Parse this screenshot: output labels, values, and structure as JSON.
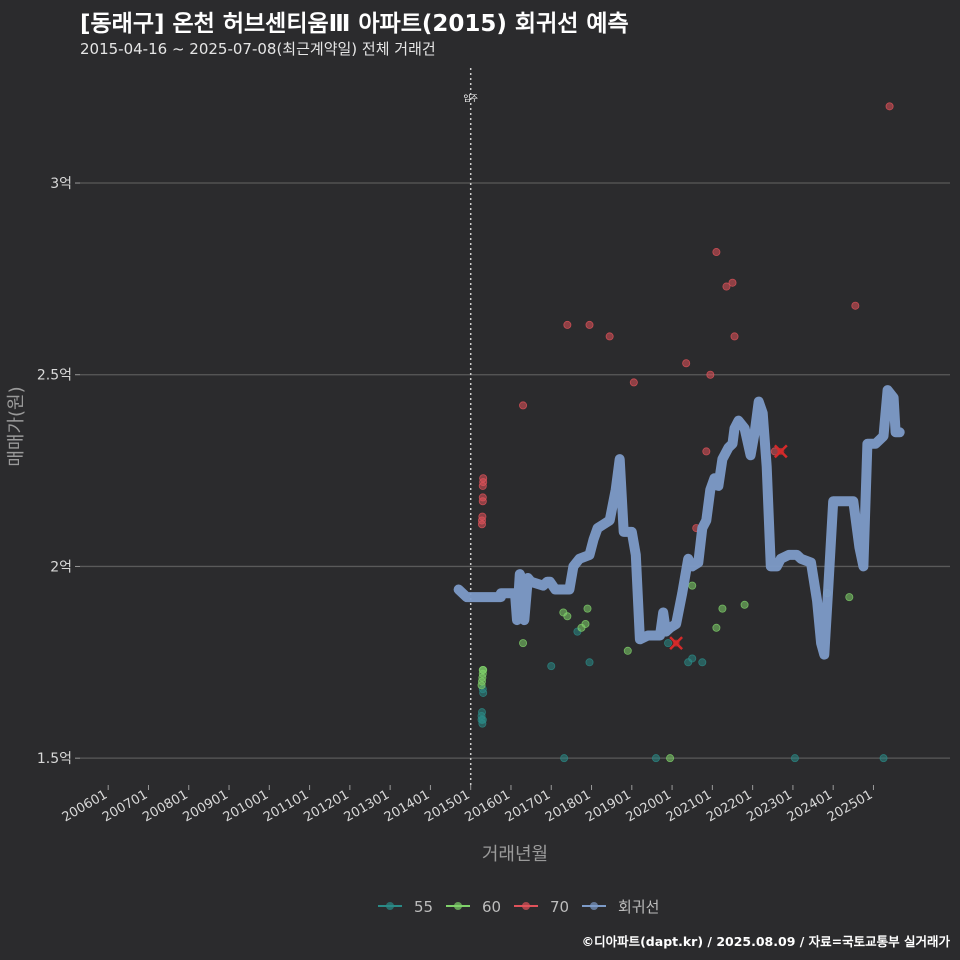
{
  "header": {
    "title": "[동래구] 온천 허브센티움Ⅲ 아파트(2015) 회귀선 예측",
    "subtitle": "2015-04-16 ~ 2025-07-08(최근계약일) 전체 거래건"
  },
  "footer": {
    "credit": "©디아파트(dapt.kr) / 2025.08.09 / 자료=국토교통부 실거래가"
  },
  "colors": {
    "background": "#2b2b2d",
    "grid": "#5a5a5a",
    "s55": "#2a8a86",
    "s60": "#7fd16a",
    "s70": "#e0525a",
    "regression": "#7d9bc8",
    "marker": "#d42a2a"
  },
  "chart_data": {
    "type": "scatter",
    "xlabel": "거래년월",
    "ylabel": "매매가(원)",
    "xlim": [
      2005.3,
      2026.9
    ],
    "ylim": [
      1.43,
      3.3
    ],
    "y_ticks": [
      {
        "v": 1.5,
        "label": "1.5억"
      },
      {
        "v": 2.0,
        "label": "2억"
      },
      {
        "v": 2.5,
        "label": "2.5억"
      },
      {
        "v": 3.0,
        "label": "3억"
      }
    ],
    "x_ticks": [
      {
        "v": 2006.0,
        "label": "200601"
      },
      {
        "v": 2007.0,
        "label": "200701"
      },
      {
        "v": 2008.0,
        "label": "200801"
      },
      {
        "v": 2009.0,
        "label": "200901"
      },
      {
        "v": 2010.0,
        "label": "201001"
      },
      {
        "v": 2011.0,
        "label": "201101"
      },
      {
        "v": 2012.0,
        "label": "201201"
      },
      {
        "v": 2013.0,
        "label": "201301"
      },
      {
        "v": 2014.0,
        "label": "201401"
      },
      {
        "v": 2015.0,
        "label": "201501"
      },
      {
        "v": 2016.0,
        "label": "201601"
      },
      {
        "v": 2017.0,
        "label": "201701"
      },
      {
        "v": 2018.0,
        "label": "201801"
      },
      {
        "v": 2019.0,
        "label": "201901"
      },
      {
        "v": 2020.0,
        "label": "202001"
      },
      {
        "v": 2021.0,
        "label": "202101"
      },
      {
        "v": 2022.0,
        "label": "202201"
      },
      {
        "v": 2023.0,
        "label": "202301"
      },
      {
        "v": 2024.0,
        "label": "202401"
      },
      {
        "v": 2025.0,
        "label": "202501"
      }
    ],
    "vline": {
      "x": 2015.0,
      "label": "입주"
    },
    "legend": [
      "55",
      "60",
      "70",
      "회귀선"
    ],
    "series": [
      {
        "name": "55",
        "color_key": "s55",
        "points": [
          [
            2015.27,
            1.6
          ],
          [
            2015.27,
            1.61
          ],
          [
            2015.28,
            1.62
          ],
          [
            2015.29,
            1.59
          ],
          [
            2015.3,
            1.6
          ],
          [
            2015.3,
            1.68
          ],
          [
            2015.31,
            1.67
          ],
          [
            2017.0,
            1.74
          ],
          [
            2017.32,
            1.5
          ],
          [
            2017.65,
            1.83
          ],
          [
            2017.95,
            1.75
          ],
          [
            2019.6,
            1.5
          ],
          [
            2019.9,
            1.8
          ],
          [
            2020.4,
            1.75
          ],
          [
            2020.5,
            1.76
          ],
          [
            2020.75,
            1.75
          ],
          [
            2023.05,
            1.5
          ],
          [
            2025.25,
            1.5
          ]
        ]
      },
      {
        "name": "60",
        "color_key": "s60",
        "points": [
          [
            2015.27,
            1.69
          ],
          [
            2015.28,
            1.7
          ],
          [
            2015.29,
            1.71
          ],
          [
            2015.3,
            1.72
          ],
          [
            2015.3,
            1.73
          ],
          [
            2015.31,
            1.73
          ],
          [
            2016.3,
            1.8
          ],
          [
            2017.3,
            1.88
          ],
          [
            2017.4,
            1.87
          ],
          [
            2017.75,
            1.84
          ],
          [
            2017.85,
            1.85
          ],
          [
            2017.9,
            1.89
          ],
          [
            2018.9,
            1.78
          ],
          [
            2019.95,
            1.5
          ],
          [
            2020.5,
            1.95
          ],
          [
            2021.1,
            1.84
          ],
          [
            2021.25,
            1.89
          ],
          [
            2021.8,
            1.9
          ],
          [
            2023.85,
            1.93
          ],
          [
            2024.4,
            1.92
          ]
        ]
      },
      {
        "name": "70",
        "color_key": "s70",
        "points": [
          [
            2015.28,
            2.11
          ],
          [
            2015.28,
            2.12
          ],
          [
            2015.29,
            2.13
          ],
          [
            2015.3,
            2.17
          ],
          [
            2015.3,
            2.18
          ],
          [
            2015.3,
            2.21
          ],
          [
            2015.31,
            2.22
          ],
          [
            2015.31,
            2.23
          ],
          [
            2016.3,
            2.42
          ],
          [
            2017.4,
            2.63
          ],
          [
            2017.95,
            2.63
          ],
          [
            2018.45,
            2.6
          ],
          [
            2019.05,
            2.48
          ],
          [
            2020.35,
            2.53
          ],
          [
            2020.6,
            2.1
          ],
          [
            2020.85,
            2.3
          ],
          [
            2020.95,
            2.5
          ],
          [
            2021.1,
            2.82
          ],
          [
            2021.35,
            2.73
          ],
          [
            2021.5,
            2.74
          ],
          [
            2021.55,
            2.6
          ],
          [
            2022.55,
            2.3
          ],
          [
            2024.55,
            2.68
          ],
          [
            2025.4,
            3.2
          ]
        ]
      }
    ],
    "markers": [
      [
        2020.1,
        1.8
      ],
      [
        2022.7,
        2.3
      ]
    ],
    "regression": [
      [
        2014.7,
        1.94
      ],
      [
        2014.9,
        1.92
      ],
      [
        2015.5,
        1.92
      ],
      [
        2015.75,
        1.92
      ],
      [
        2015.75,
        1.93
      ],
      [
        2016.1,
        1.93
      ],
      [
        2016.15,
        1.86
      ],
      [
        2016.22,
        1.98
      ],
      [
        2016.3,
        1.96
      ],
      [
        2016.33,
        1.86
      ],
      [
        2016.42,
        1.97
      ],
      [
        2016.5,
        1.96
      ],
      [
        2016.8,
        1.95
      ],
      [
        2016.9,
        1.96
      ],
      [
        2016.97,
        1.96
      ],
      [
        2017.1,
        1.94
      ],
      [
        2017.45,
        1.94
      ],
      [
        2017.55,
        2.0
      ],
      [
        2017.7,
        2.02
      ],
      [
        2017.95,
        2.03
      ],
      [
        2018.05,
        2.07
      ],
      [
        2018.15,
        2.1
      ],
      [
        2018.3,
        2.11
      ],
      [
        2018.45,
        2.12
      ],
      [
        2018.6,
        2.2
      ],
      [
        2018.7,
        2.28
      ],
      [
        2018.8,
        2.09
      ],
      [
        2019.0,
        2.09
      ],
      [
        2019.1,
        2.03
      ],
      [
        2019.2,
        1.81
      ],
      [
        2019.4,
        1.82
      ],
      [
        2019.7,
        1.82
      ],
      [
        2019.78,
        1.88
      ],
      [
        2019.85,
        1.83
      ],
      [
        2019.95,
        1.84
      ],
      [
        2020.1,
        1.85
      ],
      [
        2020.25,
        1.93
      ],
      [
        2020.4,
        2.02
      ],
      [
        2020.5,
        2.0
      ],
      [
        2020.65,
        2.01
      ],
      [
        2020.75,
        2.1
      ],
      [
        2020.85,
        2.12
      ],
      [
        2020.95,
        2.2
      ],
      [
        2021.05,
        2.23
      ],
      [
        2021.15,
        2.21
      ],
      [
        2021.25,
        2.28
      ],
      [
        2021.4,
        2.31
      ],
      [
        2021.5,
        2.32
      ],
      [
        2021.55,
        2.36
      ],
      [
        2021.65,
        2.38
      ],
      [
        2021.8,
        2.36
      ],
      [
        2021.95,
        2.29
      ],
      [
        2022.05,
        2.35
      ],
      [
        2022.15,
        2.43
      ],
      [
        2022.25,
        2.4
      ],
      [
        2022.35,
        2.26
      ],
      [
        2022.45,
        2.0
      ],
      [
        2022.6,
        2.0
      ],
      [
        2022.7,
        2.02
      ],
      [
        2022.9,
        2.03
      ],
      [
        2023.1,
        2.03
      ],
      [
        2023.2,
        2.02
      ],
      [
        2023.45,
        2.01
      ],
      [
        2023.6,
        1.91
      ],
      [
        2023.7,
        1.8
      ],
      [
        2023.78,
        1.77
      ],
      [
        2023.88,
        1.95
      ],
      [
        2024.0,
        2.17
      ],
      [
        2024.2,
        2.17
      ],
      [
        2024.5,
        2.17
      ],
      [
        2024.65,
        2.05
      ],
      [
        2024.75,
        2.0
      ],
      [
        2024.85,
        2.32
      ],
      [
        2025.05,
        2.32
      ],
      [
        2025.25,
        2.34
      ],
      [
        2025.35,
        2.46
      ],
      [
        2025.5,
        2.44
      ],
      [
        2025.55,
        2.35
      ],
      [
        2025.65,
        2.35
      ]
    ]
  }
}
